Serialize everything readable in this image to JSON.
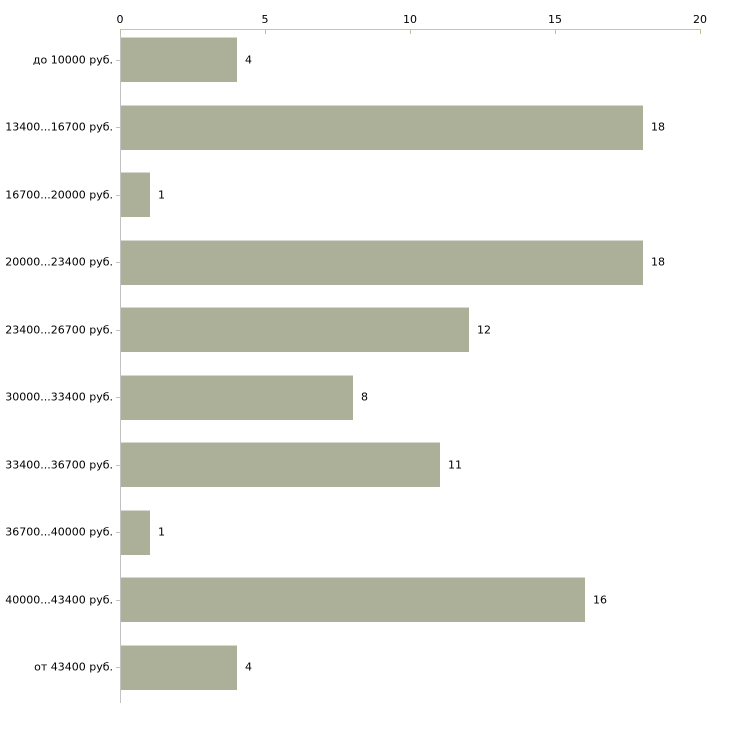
{
  "page": {
    "background": "#ffffff"
  },
  "chart_data": {
    "type": "bar",
    "orientation": "horizontal",
    "title": "",
    "xlabel": "",
    "ylabel": "",
    "grid": false,
    "legend": null,
    "axis_position": "top",
    "categories": [
      "до 10000 руб.",
      "13400...16700 руб.",
      "16700...20000 руб.",
      "20000...23400 руб.",
      "23400...26700 руб.",
      "30000...33400 руб.",
      "33400...36700 руб.",
      "36700...40000 руб.",
      "40000...43400 руб.",
      "от 43400 руб."
    ],
    "values": [
      4,
      18,
      1,
      18,
      12,
      8,
      11,
      1,
      16,
      4
    ],
    "xlim": [
      0,
      20
    ],
    "x_ticks": [
      0,
      5,
      10,
      15,
      20
    ],
    "value_labels_shown": true,
    "colors": {
      "bar": "#acb098",
      "bar_top_edge": "#d8d8d0",
      "x_axis_line": "#c6c6a2",
      "x_tick_mark": "#bdbd92",
      "y_axis_line": "#c2c2c2",
      "category_tick": "#c2c2c2",
      "text": "#000000"
    }
  }
}
